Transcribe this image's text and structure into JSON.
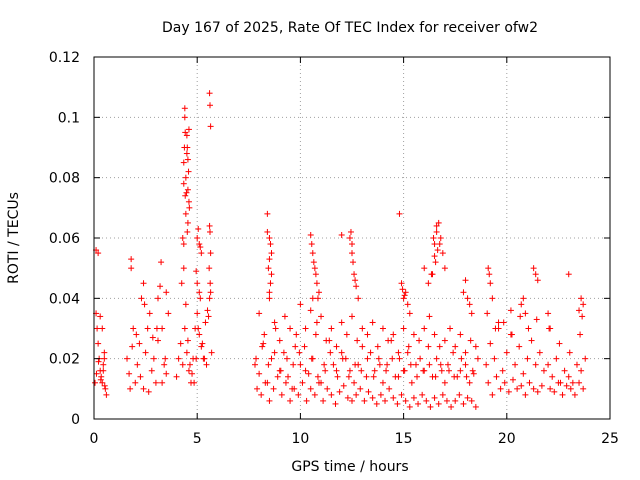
{
  "chart_data": {
    "type": "scatter",
    "title": "Day 167 of 2025, Rate Of TEC Index for receiver ofw2",
    "xlabel": "GPS time / hours",
    "ylabel": "ROTI / TECUs",
    "xlim": [
      0,
      25
    ],
    "ylim": [
      0,
      0.12
    ],
    "xticks": [
      "0",
      "5",
      "10",
      "15",
      "20",
      "25"
    ],
    "yticks": [
      "0",
      "0.02",
      "0.04",
      "0.06",
      "0.08",
      "0.1",
      "0.12"
    ],
    "grid": true,
    "marker": "+",
    "color": "#ff0000",
    "series": [
      {
        "name": "ROTI",
        "x": [
          0.1,
          0.15,
          0.2,
          0.25,
          0.3,
          0.35,
          0.4,
          0.45,
          0.5,
          0.55,
          0.6,
          0.1,
          0.2,
          0.3,
          0.4,
          0.5,
          0.05,
          0.12,
          0.22,
          0.33,
          0.45,
          0.52,
          1.6,
          1.7,
          1.8,
          1.9,
          2.0,
          2.1,
          2.2,
          2.3,
          2.4,
          2.5,
          2.6,
          2.7,
          2.8,
          2.9,
          3.0,
          3.1,
          3.2,
          3.3,
          3.4,
          3.5,
          3.6,
          1.75,
          1.85,
          2.05,
          2.25,
          2.45,
          2.65,
          2.85,
          3.05,
          3.25,
          3.45,
          1.8,
          2.4,
          3.1,
          3.3,
          3.5,
          4.0,
          4.1,
          4.2,
          4.3,
          4.4,
          4.5,
          4.6,
          4.7,
          4.8,
          4.9,
          5.0,
          5.1,
          5.2,
          5.3,
          5.4,
          5.5,
          5.6,
          5.7,
          4.25,
          4.35,
          4.45,
          4.55,
          4.65,
          4.75,
          4.85,
          4.95,
          5.05,
          5.15,
          5.25,
          5.35,
          5.45,
          5.55,
          5.65,
          4.35,
          4.38,
          4.4,
          4.42,
          4.45,
          4.48,
          4.5,
          4.52,
          4.55,
          4.58,
          4.6,
          4.62,
          4.35,
          4.45,
          4.55,
          4.4,
          4.5,
          4.6,
          4.42,
          4.52,
          4.3,
          4.35,
          4.55,
          5.6,
          5.62,
          5.65,
          5.6,
          5.62,
          5.65,
          5.58,
          5.63,
          5.0,
          5.05,
          5.1,
          5.15,
          5.2,
          4.95,
          5.0,
          5.1,
          7.8,
          8.0,
          8.2,
          8.4,
          8.6,
          8.8,
          9.0,
          9.2,
          9.4,
          9.6,
          9.8,
          10.0,
          10.2,
          10.4,
          10.6,
          10.8,
          11.0,
          11.2,
          11.4,
          11.6,
          11.8,
          12.0,
          12.2,
          12.4,
          12.6,
          12.8,
          13.0,
          13.2,
          13.4,
          13.6,
          13.8,
          14.0,
          14.2,
          14.4,
          14.6,
          14.8,
          15.0,
          15.2,
          15.4,
          15.6,
          15.8,
          16.0,
          16.2,
          16.4,
          16.6,
          16.8,
          17.0,
          17.2,
          17.4,
          17.6,
          17.8,
          18.0,
          18.2,
          18.4,
          18.6,
          7.9,
          8.1,
          8.3,
          8.5,
          8.7,
          8.9,
          9.1,
          9.3,
          9.5,
          9.7,
          9.9,
          10.1,
          10.3,
          10.5,
          10.7,
          10.9,
          11.1,
          11.3,
          11.5,
          11.7,
          11.9,
          12.1,
          12.3,
          12.5,
          12.7,
          12.9,
          13.1,
          13.3,
          13.5,
          13.7,
          13.9,
          14.1,
          14.3,
          14.5,
          14.7,
          14.9,
          15.1,
          15.3,
          15.5,
          15.7,
          15.9,
          16.1,
          16.3,
          16.5,
          16.7,
          16.9,
          17.1,
          17.3,
          17.5,
          17.7,
          17.9,
          18.1,
          18.3,
          18.5,
          8.0,
          8.25,
          8.5,
          8.75,
          9.0,
          9.25,
          9.5,
          9.75,
          10.0,
          10.25,
          10.5,
          10.75,
          11.0,
          11.25,
          11.5,
          11.75,
          12.0,
          12.25,
          12.5,
          12.75,
          13.0,
          13.25,
          13.5,
          13.75,
          14.0,
          14.25,
          14.5,
          14.75,
          15.0,
          15.25,
          15.5,
          15.75,
          16.0,
          16.25,
          16.5,
          16.75,
          17.0,
          17.25,
          17.5,
          17.75,
          18.0,
          18.25,
          18.5,
          7.85,
          8.15,
          8.45,
          8.75,
          9.05,
          9.35,
          9.65,
          9.95,
          10.25,
          10.55,
          10.85,
          11.15,
          11.45,
          11.75,
          12.05,
          12.35,
          12.65,
          12.95,
          13.25,
          13.55,
          13.85,
          14.15,
          14.45,
          14.75,
          15.05,
          15.35,
          15.65,
          15.95,
          16.25,
          16.55,
          16.85,
          17.15,
          17.45,
          17.75,
          18.05,
          18.35,
          8.4,
          8.5,
          8.6,
          8.45,
          8.55,
          8.5,
          8.6,
          8.4,
          8.5,
          8.55,
          10.5,
          10.6,
          10.7,
          10.8,
          10.9,
          10.55,
          10.65,
          10.75,
          10.85,
          10.6,
          12.4,
          12.5,
          12.6,
          12.7,
          12.8,
          12.45,
          12.55,
          12.65,
          12.5,
          12.0,
          14.8,
          14.9,
          15.0,
          15.1,
          15.2,
          15.3,
          14.95,
          15.05,
          16.0,
          16.2,
          16.4,
          16.5,
          16.6,
          16.7,
          16.8,
          16.9,
          17.0,
          16.45,
          16.55,
          16.65,
          16.35,
          16.75,
          16.6,
          16.5,
          18.0,
          18.1,
          18.2,
          18.3,
          17.9,
          19.0,
          19.2,
          19.4,
          19.6,
          19.8,
          20.0,
          20.2,
          20.4,
          20.6,
          20.8,
          21.0,
          21.2,
          21.4,
          21.6,
          21.8,
          19.1,
          19.3,
          19.5,
          19.7,
          19.9,
          20.1,
          20.3,
          20.5,
          20.7,
          20.9,
          21.1,
          21.3,
          21.5,
          21.7,
          19.05,
          19.45,
          19.85,
          20.25,
          20.65,
          21.05,
          21.45,
          19.1,
          19.15,
          19.2,
          19.3,
          20.7,
          20.8,
          20.9,
          21.3,
          21.4,
          21.5,
          19.6,
          20.2,
          22.0,
          22.2,
          22.4,
          22.6,
          22.8,
          23.0,
          23.2,
          23.4,
          23.6,
          23.8,
          22.1,
          22.3,
          22.5,
          22.7,
          22.9,
          23.1,
          23.3,
          23.5,
          23.7,
          22.05,
          22.55,
          23.05,
          23.55,
          22.0,
          22.1,
          23.0,
          23.5,
          23.6,
          23.7,
          23.65
        ],
        "y": [
          0.035,
          0.03,
          0.025,
          0.02,
          0.016,
          0.014,
          0.012,
          0.018,
          0.022,
          0.01,
          0.008,
          0.056,
          0.055,
          0.034,
          0.03,
          0.02,
          0.012,
          0.015,
          0.019,
          0.013,
          0.016,
          0.011,
          0.02,
          0.015,
          0.05,
          0.03,
          0.012,
          0.018,
          0.025,
          0.04,
          0.01,
          0.022,
          0.03,
          0.035,
          0.016,
          0.02,
          0.012,
          0.026,
          0.044,
          0.03,
          0.018,
          0.042,
          0.035,
          0.01,
          0.024,
          0.028,
          0.014,
          0.038,
          0.009,
          0.027,
          0.03,
          0.052,
          0.02,
          0.053,
          0.045,
          0.04,
          0.012,
          0.015,
          0.014,
          0.02,
          0.025,
          0.018,
          0.03,
          0.022,
          0.016,
          0.012,
          0.02,
          0.03,
          0.035,
          0.028,
          0.024,
          0.02,
          0.032,
          0.036,
          0.04,
          0.022,
          0.045,
          0.05,
          0.038,
          0.026,
          0.018,
          0.015,
          0.012,
          0.02,
          0.03,
          0.04,
          0.025,
          0.02,
          0.018,
          0.034,
          0.042,
          0.085,
          0.09,
          0.1,
          0.095,
          0.08,
          0.075,
          0.094,
          0.09,
          0.086,
          0.082,
          0.096,
          0.07,
          0.078,
          0.068,
          0.065,
          0.103,
          0.088,
          0.072,
          0.074,
          0.062,
          0.06,
          0.058,
          0.076,
          0.108,
          0.104,
          0.097,
          0.064,
          0.062,
          0.055,
          0.05,
          0.045,
          0.06,
          0.063,
          0.058,
          0.057,
          0.055,
          0.049,
          0.045,
          0.042,
          0.018,
          0.015,
          0.025,
          0.012,
          0.02,
          0.03,
          0.016,
          0.022,
          0.014,
          0.01,
          0.028,
          0.018,
          0.024,
          0.015,
          0.02,
          0.032,
          0.012,
          0.016,
          0.026,
          0.018,
          0.014,
          0.022,
          0.02,
          0.016,
          0.012,
          0.018,
          0.024,
          0.014,
          0.022,
          0.016,
          0.02,
          0.012,
          0.018,
          0.026,
          0.014,
          0.02,
          0.016,
          0.022,
          0.012,
          0.018,
          0.02,
          0.016,
          0.024,
          0.014,
          0.02,
          0.018,
          0.012,
          0.016,
          0.022,
          0.014,
          0.02,
          0.018,
          0.012,
          0.015,
          0.02,
          0.01,
          0.008,
          0.012,
          0.006,
          0.01,
          0.014,
          0.008,
          0.012,
          0.006,
          0.01,
          0.008,
          0.012,
          0.006,
          0.01,
          0.008,
          0.012,
          0.006,
          0.01,
          0.008,
          0.005,
          0.009,
          0.011,
          0.007,
          0.006,
          0.008,
          0.01,
          0.006,
          0.009,
          0.007,
          0.005,
          0.008,
          0.006,
          0.01,
          0.007,
          0.005,
          0.008,
          0.006,
          0.004,
          0.007,
          0.005,
          0.008,
          0.006,
          0.004,
          0.007,
          0.005,
          0.008,
          0.006,
          0.004,
          0.006,
          0.008,
          0.005,
          0.007,
          0.006,
          0.004,
          0.035,
          0.028,
          0.04,
          0.032,
          0.026,
          0.034,
          0.03,
          0.024,
          0.038,
          0.03,
          0.036,
          0.028,
          0.034,
          0.026,
          0.03,
          0.024,
          0.032,
          0.028,
          0.034,
          0.026,
          0.03,
          0.028,
          0.032,
          0.024,
          0.03,
          0.026,
          0.028,
          0.022,
          0.03,
          0.024,
          0.028,
          0.026,
          0.03,
          0.034,
          0.028,
          0.024,
          0.026,
          0.03,
          0.024,
          0.028,
          0.022,
          0.026,
          0.024,
          0.02,
          0.024,
          0.018,
          0.022,
          0.016,
          0.02,
          0.018,
          0.022,
          0.016,
          0.02,
          0.014,
          0.018,
          0.022,
          0.016,
          0.02,
          0.014,
          0.018,
          0.016,
          0.02,
          0.014,
          0.018,
          0.016,
          0.02,
          0.014,
          0.016,
          0.018,
          0.014,
          0.016,
          0.018,
          0.014,
          0.016,
          0.018,
          0.014,
          0.016,
          0.014,
          0.016,
          0.068,
          0.06,
          0.055,
          0.05,
          0.045,
          0.053,
          0.048,
          0.062,
          0.042,
          0.058,
          0.061,
          0.055,
          0.05,
          0.045,
          0.042,
          0.058,
          0.052,
          0.048,
          0.04,
          0.04,
          0.06,
          0.055,
          0.048,
          0.044,
          0.04,
          0.062,
          0.052,
          0.046,
          0.058,
          0.061,
          0.068,
          0.045,
          0.04,
          0.042,
          0.038,
          0.035,
          0.043,
          0.041,
          0.05,
          0.045,
          0.048,
          0.058,
          0.062,
          0.065,
          0.06,
          0.055,
          0.05,
          0.06,
          0.052,
          0.056,
          0.048,
          0.058,
          0.064,
          0.054,
          0.046,
          0.04,
          0.038,
          0.035,
          0.042,
          0.018,
          0.025,
          0.02,
          0.03,
          0.016,
          0.022,
          0.028,
          0.018,
          0.024,
          0.015,
          0.02,
          0.026,
          0.018,
          0.022,
          0.016,
          0.012,
          0.008,
          0.014,
          0.01,
          0.012,
          0.009,
          0.013,
          0.01,
          0.011,
          0.008,
          0.012,
          0.01,
          0.009,
          0.011,
          0.035,
          0.03,
          0.032,
          0.028,
          0.034,
          0.03,
          0.033,
          0.05,
          0.048,
          0.045,
          0.04,
          0.038,
          0.04,
          0.035,
          0.05,
          0.048,
          0.046,
          0.032,
          0.036,
          0.018,
          0.014,
          0.02,
          0.012,
          0.016,
          0.014,
          0.012,
          0.018,
          0.016,
          0.02,
          0.01,
          0.009,
          0.012,
          0.008,
          0.011,
          0.01,
          0.008,
          0.012,
          0.01,
          0.03,
          0.025,
          0.022,
          0.028,
          0.035,
          0.03,
          0.048,
          0.036,
          0.04,
          0.038,
          0.034
        ]
      }
    ]
  }
}
